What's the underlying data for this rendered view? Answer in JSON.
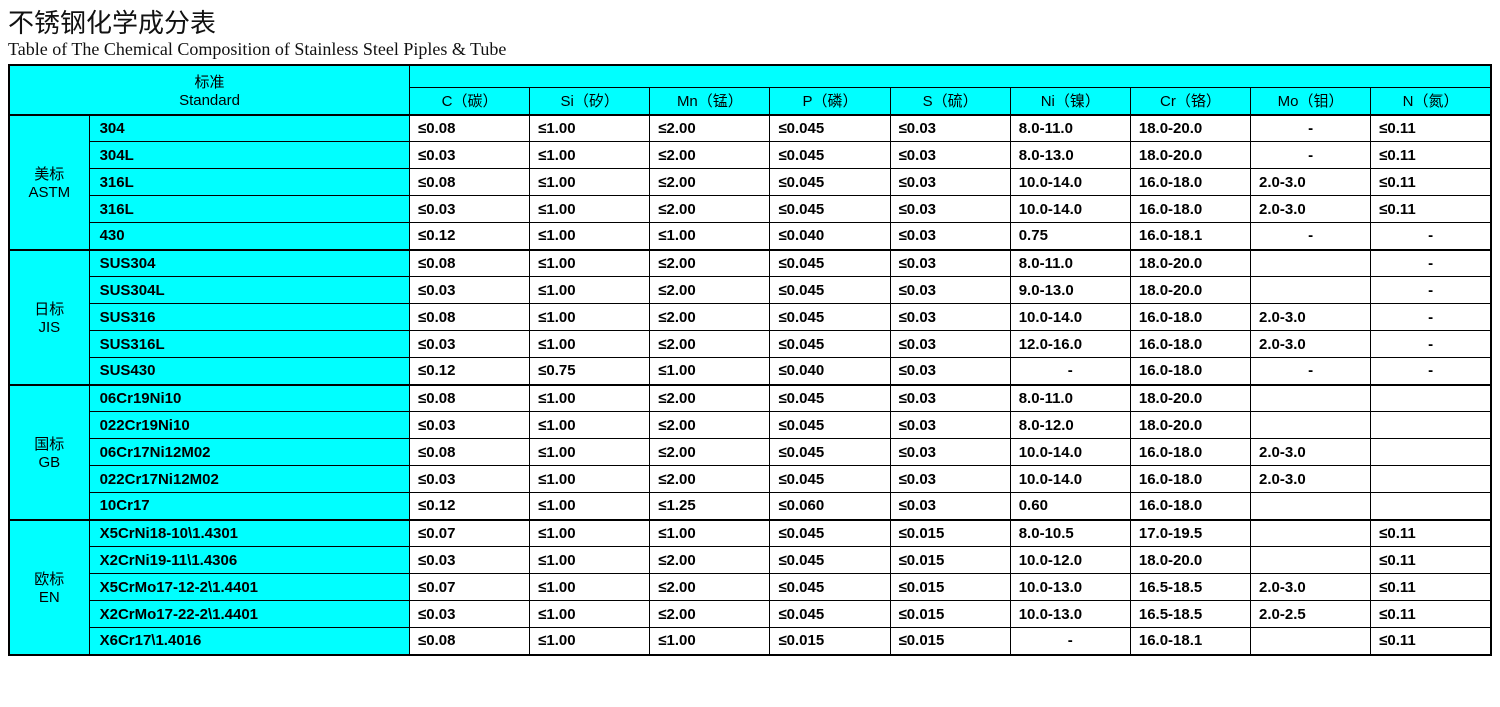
{
  "titles": {
    "cn": "不锈钢化学成分表",
    "en": "Table of The Chemical Composition of Stainless Steel Piples & Tube"
  },
  "header": {
    "standard_cn": "标准",
    "standard_en": "Standard",
    "elements": [
      "C（碳）",
      "Si（矽）",
      "Mn（锰）",
      "P（磷）",
      "S（硫）",
      "Ni（镍）",
      "Cr（铬）",
      "Mo（钼）",
      "N（氮）"
    ]
  },
  "groups": [
    {
      "std_cn": "美标",
      "std_en": "ASTM",
      "rows": [
        {
          "grade": "304",
          "v": [
            "≤0.08",
            "≤1.00",
            "≤2.00",
            "≤0.045",
            "≤0.03",
            "8.0-11.0",
            "18.0-20.0",
            "-",
            "≤0.11"
          ],
          "align": [
            "l",
            "l",
            "l",
            "l",
            "l",
            "l",
            "l",
            "c",
            "l"
          ]
        },
        {
          "grade": "304L",
          "v": [
            "≤0.03",
            "≤1.00",
            "≤2.00",
            "≤0.045",
            "≤0.03",
            "8.0-13.0",
            "18.0-20.0",
            "-",
            "≤0.11"
          ],
          "align": [
            "l",
            "l",
            "l",
            "l",
            "l",
            "l",
            "l",
            "c",
            "l"
          ]
        },
        {
          "grade": "316L",
          "v": [
            "≤0.08",
            "≤1.00",
            "≤2.00",
            "≤0.045",
            "≤0.03",
            "10.0-14.0",
            "16.0-18.0",
            "2.0-3.0",
            "≤0.11"
          ],
          "align": [
            "l",
            "l",
            "l",
            "l",
            "l",
            "l",
            "l",
            "l",
            "l"
          ]
        },
        {
          "grade": "316L",
          "v": [
            "≤0.03",
            "≤1.00",
            "≤2.00",
            "≤0.045",
            "≤0.03",
            "10.0-14.0",
            "16.0-18.0",
            "2.0-3.0",
            "≤0.11"
          ],
          "align": [
            "l",
            "l",
            "l",
            "l",
            "l",
            "l",
            "l",
            "l",
            "l"
          ]
        },
        {
          "grade": "430",
          "v": [
            "≤0.12",
            "≤1.00",
            "≤1.00",
            "≤0.040",
            "≤0.03",
            "0.75",
            "16.0-18.1",
            "-",
            "-"
          ],
          "align": [
            "l",
            "l",
            "l",
            "l",
            "l",
            "l",
            "l",
            "c",
            "c"
          ]
        }
      ]
    },
    {
      "std_cn": "日标",
      "std_en": "JIS",
      "rows": [
        {
          "grade": "SUS304",
          "v": [
            "≤0.08",
            "≤1.00",
            "≤2.00",
            "≤0.045",
            "≤0.03",
            "8.0-11.0",
            "18.0-20.0",
            "",
            "-"
          ],
          "align": [
            "l",
            "l",
            "l",
            "l",
            "l",
            "l",
            "l",
            "l",
            "c"
          ]
        },
        {
          "grade": "SUS304L",
          "v": [
            "≤0.03",
            "≤1.00",
            "≤2.00",
            "≤0.045",
            "≤0.03",
            "9.0-13.0",
            "18.0-20.0",
            "",
            "-"
          ],
          "align": [
            "l",
            "l",
            "l",
            "l",
            "l",
            "l",
            "l",
            "l",
            "c"
          ]
        },
        {
          "grade": "SUS316",
          "v": [
            "≤0.08",
            "≤1.00",
            "≤2.00",
            "≤0.045",
            "≤0.03",
            "10.0-14.0",
            "16.0-18.0",
            "2.0-3.0",
            "-"
          ],
          "align": [
            "l",
            "l",
            "l",
            "l",
            "l",
            "l",
            "l",
            "l",
            "c"
          ]
        },
        {
          "grade": "SUS316L",
          "v": [
            "≤0.03",
            "≤1.00",
            "≤2.00",
            "≤0.045",
            "≤0.03",
            "12.0-16.0",
            "16.0-18.0",
            "2.0-3.0",
            "-"
          ],
          "align": [
            "l",
            "l",
            "l",
            "l",
            "l",
            "l",
            "l",
            "l",
            "c"
          ]
        },
        {
          "grade": "SUS430",
          "v": [
            "≤0.12",
            "≤0.75",
            "≤1.00",
            "≤0.040",
            "≤0.03",
            "-",
            "16.0-18.0",
            "-",
            "-"
          ],
          "align": [
            "l",
            "l",
            "l",
            "l",
            "l",
            "c",
            "l",
            "c",
            "c"
          ]
        }
      ]
    },
    {
      "std_cn": "国标",
      "std_en": "GB",
      "rows": [
        {
          "grade": "06Cr19Ni10",
          "v": [
            "≤0.08",
            "≤1.00",
            "≤2.00",
            "≤0.045",
            "≤0.03",
            "8.0-11.0",
            "18.0-20.0",
            "",
            ""
          ],
          "align": [
            "l",
            "l",
            "l",
            "l",
            "l",
            "l",
            "l",
            "l",
            "l"
          ]
        },
        {
          "grade": "022Cr19Ni10",
          "v": [
            "≤0.03",
            "≤1.00",
            "≤2.00",
            "≤0.045",
            "≤0.03",
            "8.0-12.0",
            "18.0-20.0",
            "",
            ""
          ],
          "align": [
            "l",
            "l",
            "l",
            "l",
            "l",
            "l",
            "l",
            "l",
            "l"
          ]
        },
        {
          "grade": "06Cr17Ni12M02",
          "v": [
            "≤0.08",
            "≤1.00",
            "≤2.00",
            "≤0.045",
            "≤0.03",
            "10.0-14.0",
            "16.0-18.0",
            "2.0-3.0",
            ""
          ],
          "align": [
            "l",
            "l",
            "l",
            "l",
            "l",
            "l",
            "l",
            "l",
            "l"
          ]
        },
        {
          "grade": "022Cr17Ni12M02",
          "v": [
            "≤0.03",
            "≤1.00",
            "≤2.00",
            "≤0.045",
            "≤0.03",
            "10.0-14.0",
            "16.0-18.0",
            "2.0-3.0",
            ""
          ],
          "align": [
            "l",
            "l",
            "l",
            "l",
            "l",
            "l",
            "l",
            "l",
            "l"
          ]
        },
        {
          "grade": "10Cr17",
          "v": [
            "≤0.12",
            "≤1.00",
            "≤1.25",
            "≤0.060",
            "≤0.03",
            "0.60",
            "16.0-18.0",
            "",
            ""
          ],
          "align": [
            "l",
            "l",
            "l",
            "l",
            "l",
            "l",
            "l",
            "l",
            "l"
          ]
        }
      ]
    },
    {
      "std_cn": "欧标",
      "std_en": "EN",
      "rows": [
        {
          "grade": "X5CrNi18-10\\1.4301",
          "v": [
            "≤0.07",
            "≤1.00",
            "≤1.00",
            "≤0.045",
            "≤0.015",
            "8.0-10.5",
            "17.0-19.5",
            "",
            "≤0.11"
          ],
          "align": [
            "l",
            "l",
            "l",
            "l",
            "l",
            "l",
            "l",
            "l",
            "l"
          ]
        },
        {
          "grade": "X2CrNi19-11\\1.4306",
          "v": [
            "≤0.03",
            "≤1.00",
            "≤2.00",
            "≤0.045",
            "≤0.015",
            "10.0-12.0",
            "18.0-20.0",
            "",
            "≤0.11"
          ],
          "align": [
            "l",
            "l",
            "l",
            "l",
            "l",
            "l",
            "l",
            "l",
            "l"
          ]
        },
        {
          "grade": "X5CrMo17-12-2\\1.4401",
          "v": [
            "≤0.07",
            "≤1.00",
            "≤2.00",
            "≤0.045",
            "≤0.015",
            "10.0-13.0",
            "16.5-18.5",
            "2.0-3.0",
            "≤0.11"
          ],
          "align": [
            "l",
            "l",
            "l",
            "l",
            "l",
            "l",
            "l",
            "l",
            "l"
          ]
        },
        {
          "grade": "X2CrMo17-22-2\\1.4401",
          "v": [
            "≤0.03",
            "≤1.00",
            "≤2.00",
            "≤0.045",
            "≤0.015",
            "10.0-13.0",
            "16.5-18.5",
            "2.0-2.5",
            "≤0.11"
          ],
          "align": [
            "l",
            "l",
            "l",
            "l",
            "l",
            "l",
            "l",
            "l",
            "l"
          ]
        },
        {
          "grade": "X6Cr17\\1.4016",
          "v": [
            "≤0.08",
            "≤1.00",
            "≤1.00",
            "≤0.015",
            "≤0.015",
            "-",
            "16.0-18.1",
            "",
            "≤0.11"
          ],
          "align": [
            "l",
            "l",
            "l",
            "l",
            "l",
            "c",
            "l",
            "l",
            "l"
          ]
        }
      ]
    }
  ],
  "style": {
    "header_bg": "#00ffff",
    "cell_bg": "#ffffff",
    "border_color": "#000000",
    "font_size_title_cn": 26,
    "font_size_title_en": 18,
    "font_size_cell": 15
  }
}
